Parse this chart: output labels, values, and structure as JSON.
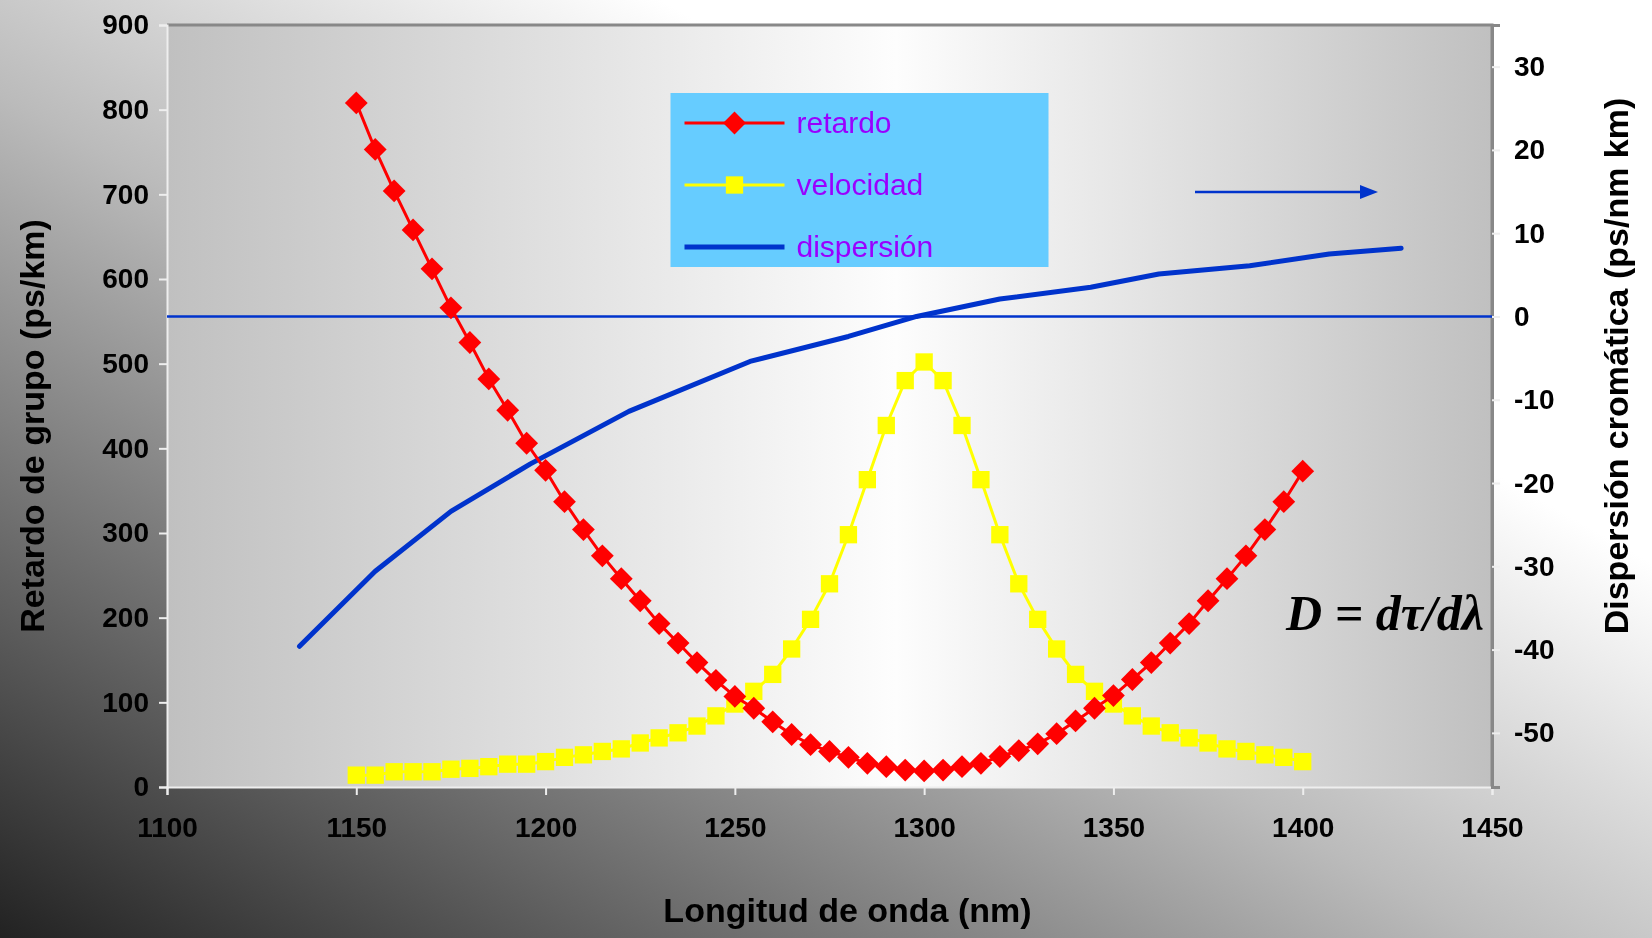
{
  "chart_data": {
    "type": "line",
    "xlabel": "Longitud de onda (nm)",
    "ylabel": "Retardo de grupo (ps/km)",
    "y2label": "Dispersión cromática (ps/nm km)",
    "xlim": [
      1100,
      1450
    ],
    "xticks": [
      1100,
      1150,
      1200,
      1250,
      1300,
      1350,
      1400,
      1450
    ],
    "ylim": [
      0,
      900
    ],
    "yticks": [
      0,
      100,
      200,
      300,
      400,
      500,
      600,
      700,
      800,
      900
    ],
    "y2lim": [
      -56.5,
      35
    ],
    "y2ticks": [
      -50,
      -40,
      -30,
      -20,
      -10,
      0,
      10,
      20,
      30
    ],
    "grid": false,
    "legend": "top",
    "series": [
      {
        "name": "retardo",
        "color": "#ff0000",
        "marker": "diamond",
        "x": [
          1150,
          1155,
          1160,
          1165,
          1170,
          1175,
          1180,
          1185,
          1190,
          1195,
          1200,
          1205,
          1210,
          1215,
          1220,
          1225,
          1230,
          1235,
          1240,
          1245,
          1250,
          1255,
          1260,
          1265,
          1270,
          1275,
          1280,
          1285,
          1290,
          1295,
          1300,
          1305,
          1310,
          1315,
          1320,
          1325,
          1330,
          1335,
          1340,
          1345,
          1350,
          1355,
          1360,
          1365,
          1370,
          1375,
          1380,
          1385,
          1390,
          1395,
          1400
        ],
        "values": [
          808,
          753,
          704,
          658,
          612,
          566,
          525,
          482,
          445,
          406,
          374,
          337,
          304,
          273,
          246,
          220,
          193,
          170,
          147,
          126,
          107,
          93,
          77,
          62,
          50,
          42,
          35,
          28,
          24,
          20,
          19,
          20,
          24,
          28,
          36,
          43,
          51,
          63,
          78,
          93,
          108,
          127,
          147,
          170,
          193,
          220,
          246,
          273,
          304,
          337,
          373
        ]
      },
      {
        "name": "velocidad",
        "color": "#ffff00",
        "marker": "square",
        "x": [
          1150,
          1155,
          1160,
          1165,
          1170,
          1175,
          1180,
          1185,
          1190,
          1195,
          1200,
          1205,
          1210,
          1215,
          1220,
          1225,
          1230,
          1235,
          1240,
          1245,
          1250,
          1255,
          1260,
          1265,
          1270,
          1275,
          1280,
          1285,
          1290,
          1295,
          1300,
          1305,
          1310,
          1315,
          1320,
          1325,
          1330,
          1335,
          1340,
          1345,
          1350,
          1355,
          1360,
          1365,
          1370,
          1375,
          1380,
          1385,
          1390,
          1395,
          1400
        ],
        "values": [
          14,
          14,
          18,
          18,
          18,
          21,
          22,
          24,
          27,
          27,
          30,
          35,
          38,
          42,
          45,
          52,
          58,
          64,
          72,
          84,
          98,
          113,
          133,
          163,
          198,
          240,
          298,
          363,
          427,
          480,
          502,
          480,
          427,
          363,
          298,
          240,
          198,
          163,
          133,
          113,
          98,
          84,
          72,
          64,
          58,
          52,
          45,
          42,
          38,
          35,
          30
        ]
      },
      {
        "name": "dispersión",
        "color": "#0033cc",
        "marker": "none",
        "axis": "y2",
        "x": [
          1135,
          1155,
          1175,
          1196,
          1222,
          1254,
          1280,
          1298,
          1320,
          1344,
          1362,
          1386,
          1407,
          1426
        ],
        "values": [
          -39.6,
          -30.6,
          -23.4,
          -17.7,
          -11.4,
          -5.4,
          -2.4,
          0,
          2.1,
          3.5,
          5.1,
          6.1,
          7.5,
          8.2
        ]
      }
    ],
    "ref_lines": [
      {
        "axis": "y2",
        "value": 0,
        "color": "#0033cc"
      }
    ],
    "annotations": [
      "D = dτ/dλ"
    ]
  }
}
